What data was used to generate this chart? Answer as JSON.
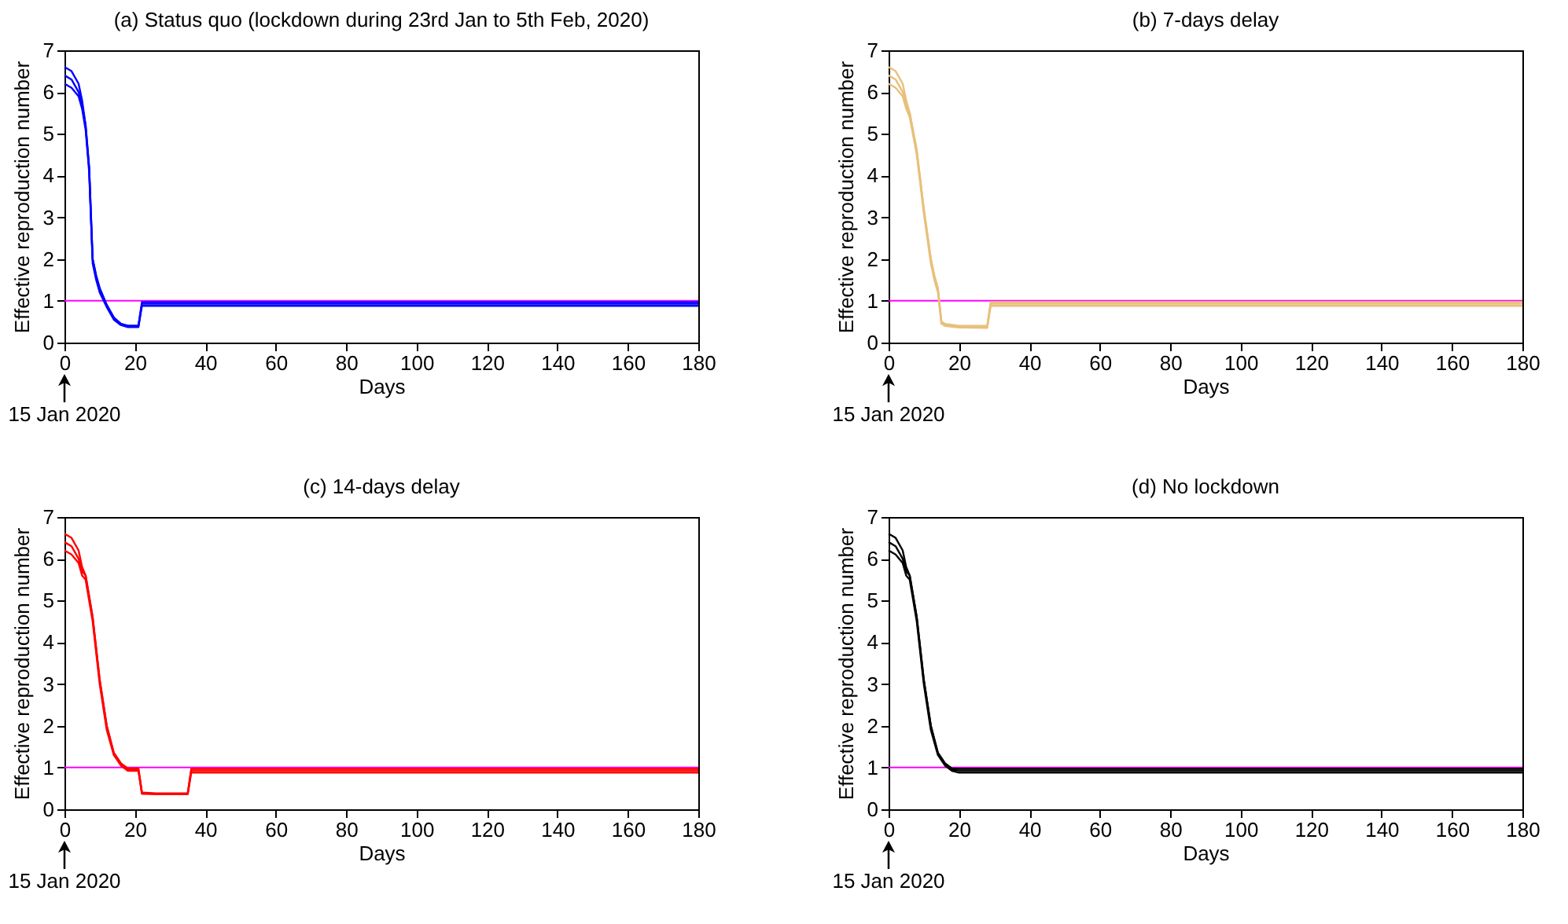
{
  "chart_data": [
    {
      "type": "line",
      "title": "(a) Status quo (lockdown during 23rd Jan to 5th Feb, 2020)",
      "xlabel": "Days",
      "ylabel": "Effective reproduction number",
      "xlim": [
        0,
        180
      ],
      "xticks": [
        0,
        20,
        40,
        60,
        80,
        100,
        120,
        140,
        160,
        180
      ],
      "ylim": [
        0,
        7
      ],
      "yticks": [
        0,
        1,
        2,
        3,
        4,
        5,
        6,
        7
      ],
      "ref_lines": [
        {
          "axis": "y",
          "value": 1,
          "color": "#ff00ff"
        }
      ],
      "annotations": [
        "15 Jan 2020"
      ],
      "series": [
        {
          "color": "#0000ff",
          "x": [
            0,
            2,
            4,
            5,
            6,
            7,
            8,
            9,
            10,
            12,
            14,
            16,
            18,
            21,
            22,
            30,
            180
          ],
          "values": [
            6.6,
            6.5,
            6.2,
            5.8,
            5.2,
            4.2,
            2.0,
            1.6,
            1.3,
            0.9,
            0.6,
            0.45,
            0.4,
            0.4,
            0.97,
            0.97,
            0.97
          ]
        },
        {
          "color": "#0000ff",
          "x": [
            0,
            2,
            4,
            5,
            6,
            7,
            8,
            9,
            10,
            12,
            14,
            16,
            18,
            21,
            22,
            30,
            180
          ],
          "values": [
            6.4,
            6.3,
            6.0,
            5.7,
            5.2,
            4.2,
            2.0,
            1.6,
            1.3,
            0.9,
            0.6,
            0.45,
            0.4,
            0.4,
            0.93,
            0.93,
            0.93
          ]
        },
        {
          "color": "#0000ff",
          "x": [
            0,
            2,
            4,
            5,
            6,
            7,
            8,
            9,
            10,
            12,
            14,
            16,
            18,
            21,
            22,
            30,
            180
          ],
          "values": [
            6.2,
            6.1,
            5.9,
            5.6,
            5.1,
            4.1,
            1.9,
            1.5,
            1.2,
            0.85,
            0.55,
            0.42,
            0.37,
            0.37,
            0.88,
            0.88,
            0.88
          ]
        }
      ]
    },
    {
      "type": "line",
      "title": "(b) 7-days delay",
      "xlabel": "Days",
      "ylabel": "Effective reproduction number",
      "xlim": [
        0,
        180
      ],
      "xticks": [
        0,
        20,
        40,
        60,
        80,
        100,
        120,
        140,
        160,
        180
      ],
      "ylim": [
        0,
        7
      ],
      "yticks": [
        0,
        1,
        2,
        3,
        4,
        5,
        6,
        7
      ],
      "ref_lines": [
        {
          "axis": "y",
          "value": 1,
          "color": "#ff00ff"
        }
      ],
      "annotations": [
        "15 Jan 2020"
      ],
      "series": [
        {
          "color": "#e8c07a",
          "x": [
            0,
            2,
            4,
            5,
            6,
            8,
            10,
            12,
            13,
            14,
            15,
            16,
            20,
            28,
            29,
            40,
            180
          ],
          "values": [
            6.6,
            6.5,
            6.2,
            5.8,
            5.5,
            4.6,
            3.2,
            2.0,
            1.6,
            1.3,
            0.5,
            0.45,
            0.4,
            0.4,
            0.97,
            0.97,
            0.97
          ]
        },
        {
          "color": "#e8c07a",
          "x": [
            0,
            2,
            4,
            5,
            6,
            8,
            10,
            12,
            13,
            14,
            15,
            16,
            20,
            28,
            29,
            40,
            180
          ],
          "values": [
            6.4,
            6.3,
            6.0,
            5.7,
            5.5,
            4.6,
            3.2,
            2.0,
            1.6,
            1.3,
            0.5,
            0.43,
            0.38,
            0.37,
            0.93,
            0.93,
            0.93
          ]
        },
        {
          "color": "#e8c07a",
          "x": [
            0,
            2,
            4,
            5,
            6,
            8,
            10,
            12,
            13,
            14,
            15,
            16,
            20,
            28,
            29,
            40,
            180
          ],
          "values": [
            6.2,
            6.1,
            5.9,
            5.6,
            5.4,
            4.5,
            3.1,
            1.9,
            1.5,
            1.2,
            0.45,
            0.4,
            0.36,
            0.35,
            0.88,
            0.88,
            0.88
          ]
        }
      ]
    },
    {
      "type": "line",
      "title": "(c) 14-days delay",
      "xlabel": "Days",
      "ylabel": "Effective reproduction number",
      "xlim": [
        0,
        180
      ],
      "xticks": [
        0,
        20,
        40,
        60,
        80,
        100,
        120,
        140,
        160,
        180
      ],
      "ylim": [
        0,
        7
      ],
      "yticks": [
        0,
        1,
        2,
        3,
        4,
        5,
        6,
        7
      ],
      "ref_lines": [
        {
          "axis": "y",
          "value": 1,
          "color": "#ff00ff"
        }
      ],
      "annotations": [
        "15 Jan 2020"
      ],
      "series": [
        {
          "color": "#ff0000",
          "x": [
            0,
            2,
            4,
            5,
            6,
            8,
            10,
            12,
            14,
            16,
            18,
            21,
            22,
            26,
            35,
            36,
            180
          ],
          "values": [
            6.6,
            6.5,
            6.2,
            5.8,
            5.6,
            4.6,
            3.1,
            2.0,
            1.35,
            1.1,
            0.98,
            0.98,
            0.4,
            0.38,
            0.38,
            0.97,
            0.97
          ]
        },
        {
          "color": "#ff0000",
          "x": [
            0,
            2,
            4,
            5,
            6,
            8,
            10,
            12,
            14,
            16,
            18,
            21,
            22,
            26,
            35,
            36,
            180
          ],
          "values": [
            6.4,
            6.3,
            6.0,
            5.7,
            5.6,
            4.6,
            3.1,
            2.0,
            1.35,
            1.1,
            0.95,
            0.95,
            0.39,
            0.37,
            0.37,
            0.93,
            0.93
          ]
        },
        {
          "color": "#ff0000",
          "x": [
            0,
            2,
            4,
            5,
            6,
            8,
            10,
            12,
            14,
            16,
            18,
            21,
            22,
            26,
            35,
            36,
            180
          ],
          "values": [
            6.2,
            6.1,
            5.9,
            5.6,
            5.5,
            4.5,
            3.0,
            1.9,
            1.3,
            1.05,
            0.92,
            0.92,
            0.37,
            0.36,
            0.36,
            0.88,
            0.88
          ]
        }
      ]
    },
    {
      "type": "line",
      "title": "(d) No lockdown",
      "xlabel": "Days",
      "ylabel": "Effective reproduction number",
      "xlim": [
        0,
        180
      ],
      "xticks": [
        0,
        20,
        40,
        60,
        80,
        100,
        120,
        140,
        160,
        180
      ],
      "ylim": [
        0,
        7
      ],
      "yticks": [
        0,
        1,
        2,
        3,
        4,
        5,
        6,
        7
      ],
      "ref_lines": [
        {
          "axis": "y",
          "value": 1,
          "color": "#ff00ff"
        }
      ],
      "annotations": [
        "15 Jan 2020"
      ],
      "series": [
        {
          "color": "#000000",
          "x": [
            0,
            2,
            4,
            5,
            6,
            8,
            10,
            12,
            14,
            16,
            18,
            20,
            180
          ],
          "values": [
            6.6,
            6.5,
            6.2,
            5.8,
            5.6,
            4.6,
            3.1,
            2.0,
            1.35,
            1.1,
            0.98,
            0.97,
            0.97
          ]
        },
        {
          "color": "#000000",
          "x": [
            0,
            2,
            4,
            5,
            6,
            8,
            10,
            12,
            14,
            16,
            18,
            20,
            180
          ],
          "values": [
            6.4,
            6.3,
            6.0,
            5.7,
            5.6,
            4.6,
            3.1,
            2.0,
            1.35,
            1.1,
            0.95,
            0.93,
            0.93
          ]
        },
        {
          "color": "#000000",
          "x": [
            0,
            2,
            4,
            5,
            6,
            8,
            10,
            12,
            14,
            16,
            18,
            20,
            180
          ],
          "values": [
            6.2,
            6.1,
            5.9,
            5.6,
            5.5,
            4.5,
            3.0,
            1.9,
            1.3,
            1.05,
            0.92,
            0.88,
            0.88
          ]
        }
      ]
    }
  ]
}
